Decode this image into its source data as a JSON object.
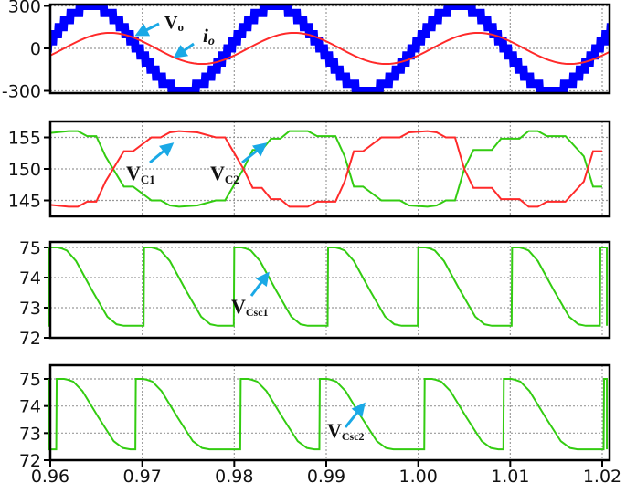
{
  "chart_data": [
    {
      "type": "line",
      "panel": 1,
      "title": "",
      "xlabel": "",
      "ylabel": "",
      "xlim": [
        0.96,
        1.02
      ],
      "ylim": [
        -300,
        300
      ],
      "yticks": [
        "300",
        "0",
        "-300"
      ],
      "grid": true,
      "series": [
        {
          "name": "Vo",
          "color": "#0000ff",
          "style": "multilevel staircase",
          "amplitude": 300,
          "period": 0.02,
          "levels": [
            -300,
            -250,
            -200,
            -150,
            -100,
            -50,
            0,
            50,
            100,
            150,
            200,
            250,
            300
          ],
          "zero_crossing_rising": 0.9595
        },
        {
          "name": "io",
          "color": "#ff2a2a",
          "style": "sinusoid",
          "amplitude": 110,
          "period": 0.02,
          "zero_crossing_rising": 0.9615
        }
      ],
      "annotations": [
        {
          "text": "Vo",
          "arrow_color": "#1aa9e6"
        },
        {
          "text": "io",
          "arrow_color": "#1aa9e6"
        }
      ]
    },
    {
      "type": "line",
      "panel": 2,
      "xlim": [
        0.96,
        1.02
      ],
      "ylim": [
        143.5,
        157
      ],
      "yticks": [
        "155",
        "150",
        "145"
      ],
      "grid": true,
      "series": [
        {
          "name": "VC1",
          "color": "#ff2a2a",
          "min": 144,
          "max": 156,
          "period": 0.02,
          "x": [
            0.96,
            0.962,
            0.963,
            0.964,
            0.965,
            0.966,
            0.968,
            0.969,
            0.971,
            0.972,
            0.973,
            0.974,
            0.976,
            0.978,
            0.979,
            0.981,
            0.982,
            0.983,
            0.984,
            0.985,
            0.986,
            0.988,
            0.989,
            0.991,
            0.992,
            0.993,
            0.994,
            0.996,
            0.998,
            0.999,
            1.001,
            1.002,
            1.003,
            1.004,
            1.005,
            1.006,
            1.008,
            1.009,
            1.011,
            1.012,
            1.013,
            1.014,
            1.016,
            1.018,
            1.019,
            1.02
          ],
          "values": [
            144.3,
            144,
            144,
            144.8,
            144.8,
            148,
            152.8,
            152.8,
            155,
            155,
            155.8,
            156,
            155.8,
            155,
            155,
            150,
            147,
            147,
            145.2,
            145.2,
            144,
            144,
            144.8,
            144.8,
            148,
            152.8,
            152.8,
            155,
            155,
            155.8,
            156,
            155.8,
            155,
            155,
            150,
            147,
            147,
            145.2,
            145.2,
            144,
            144,
            144.8,
            144.8,
            148,
            152.8,
            152.8
          ]
        },
        {
          "name": "VC2",
          "color": "#33cc11",
          "min": 144,
          "max": 156,
          "period": 0.02
        }
      ],
      "annotations": [
        {
          "text": "VC1",
          "arrow_color": "#1aa9e6"
        },
        {
          "text": "VC2",
          "arrow_color": "#1aa9e6"
        }
      ]
    },
    {
      "type": "line",
      "panel": 3,
      "xlim": [
        0.96,
        1.02
      ],
      "ylim": [
        72,
        75
      ],
      "yticks": [
        "75",
        "74",
        "73",
        "72"
      ],
      "grid": true,
      "series": [
        {
          "name": "VCsc1",
          "color": "#33cc11",
          "style": "sawtooth",
          "max": 75,
          "min": 72.4,
          "period": 0.01,
          "jump_times": [
            0.9702,
            0.9802,
            0.9902,
            1.0002,
            1.0102,
            1.0202
          ]
        }
      ],
      "annotations": [
        {
          "text": "VCsc1",
          "arrow_color": "#1aa9e6"
        }
      ]
    },
    {
      "type": "line",
      "panel": 4,
      "xlabel": "",
      "xlim": [
        0.96,
        1.02
      ],
      "xticks": [
        "0.96",
        "0.97",
        "0.98",
        "0.99",
        "1.00",
        "1.01",
        "1.02"
      ],
      "ylim": [
        72,
        75.5
      ],
      "yticks": [
        "75",
        "74",
        "73",
        "72"
      ],
      "grid": true,
      "series": [
        {
          "name": "VCsc2",
          "color": "#33cc11",
          "style": "sawtooth",
          "max": 75,
          "min": 72.4,
          "period": 0.01,
          "jump_times": [
            0.9605,
            0.9692,
            0.9805,
            0.9892,
            1.0005,
            1.0092,
            1.0205
          ]
        }
      ],
      "annotations": [
        {
          "text": "VCsc2",
          "arrow_color": "#1aa9e6"
        }
      ]
    }
  ],
  "labels": {
    "vo_main": "V",
    "vo_sub": "o",
    "io_main": "i",
    "io_sub": "o",
    "vc1_main": "V",
    "vc1_sub": "C1",
    "vc2_main": "V",
    "vc2_sub": "C2",
    "vcsc1_main": "V",
    "vcsc1_sub": "Csc1",
    "vcsc2_main": "V",
    "vcsc2_sub": "Csc2"
  },
  "colors": {
    "vo": "#0000ff",
    "io": "#ff2a2a",
    "vc1": "#ff2a2a",
    "vc2": "#33cc11",
    "vcsc": "#33cc11",
    "arrow": "#1aa9e6",
    "grid": "#999999",
    "frame": "#000000"
  }
}
